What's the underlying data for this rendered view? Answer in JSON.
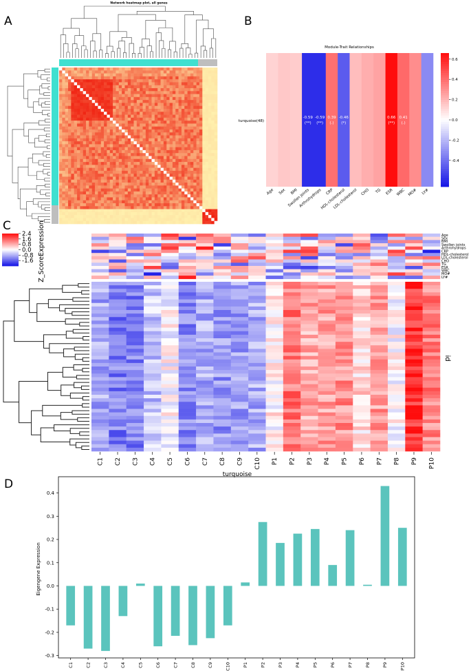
{
  "panels": {
    "a": {
      "letter": "A",
      "title": "Network heatmap plot, all genes"
    },
    "b": {
      "letter": "B"
    },
    "c": {
      "letter": "C"
    },
    "d": {
      "letter": "D"
    }
  },
  "colors": {
    "turquoise": "#40E0D0",
    "grey": "#BEBEBE",
    "bar": "#5BC4BD",
    "heat_high": "#E8150C",
    "heat_low": "#FFF8CC",
    "neg": "#1414E6",
    "pos": "#FF0D0D"
  },
  "chart_data": [
    {
      "id": "network_heatmap",
      "type": "heatmap",
      "title": "Network heatmap plot, all genes",
      "modules": [
        "turquoise",
        "grey"
      ],
      "module_sizes": [
        48,
        5
      ]
    },
    {
      "id": "module_trait",
      "type": "heatmap",
      "title": "Module-Trait Relationships",
      "row_label": "turquoise(48)",
      "traits": [
        "Age",
        "Sex",
        "BMI",
        "Swollen joints",
        "Arthrohydrops",
        "CRP",
        "HDL-cholesterol",
        "LDL-cholesterol",
        "CHO",
        "TG",
        "ESR",
        "WBC",
        "MO#",
        "LY#"
      ],
      "values": [
        0.12,
        0.15,
        0.14,
        -0.59,
        -0.59,
        0.39,
        -0.46,
        0.18,
        0.22,
        0.25,
        0.66,
        0.41,
        0.31,
        -0.33
      ],
      "cell_labels": [
        "",
        "",
        "",
        "-0.59",
        "-0.59",
        "0.39",
        "-0.46",
        "",
        "",
        "",
        "0.66",
        "0.41",
        "",
        ""
      ],
      "cell_stars": [
        "",
        "",
        "",
        "(**)",
        "(**)",
        "(.)",
        "(*)",
        "",
        "",
        "",
        "(**)",
        "(.)",
        "",
        ""
      ],
      "colorbar_ticks": [
        "0.6",
        "0.4",
        "0.2",
        "0.0",
        "-0.2",
        "-0.4"
      ],
      "colorbar_tick_values": [
        0.6,
        0.4,
        0.2,
        0.0,
        -0.2,
        -0.4
      ],
      "colorbar_range": [
        -0.66,
        0.66
      ]
    },
    {
      "id": "zscore_heatmap",
      "type": "heatmap",
      "columns": [
        "C1",
        "C2",
        "C3",
        "C4",
        "C5",
        "C6",
        "C7",
        "C8",
        "C9",
        "C10",
        "P1",
        "P2",
        "P3",
        "P4",
        "P5",
        "P6",
        "P7",
        "P8",
        "P9",
        "P10"
      ],
      "trait_rows": [
        "Age",
        "Sex",
        "BMI",
        "Swollen joints",
        "Arthrohydrops",
        "CRP",
        "HDL-cholesterol",
        "LDL-cholesterol",
        "CHO",
        "TG",
        "ESR",
        "WBC",
        "MO#",
        "LY#"
      ],
      "gene_rows": 48,
      "xlabel": "turquoise",
      "ylabel": "id",
      "legend_title": "Z_ScoreExpression",
      "legend_ticks": [
        "2.4",
        "1.6",
        "0.8",
        "0.0",
        "-0.8",
        "-1.6"
      ],
      "legend_tick_values": [
        2.4,
        1.6,
        0.8,
        0.0,
        -0.8,
        -1.6
      ],
      "legend_range": [
        -2.4,
        2.4
      ]
    },
    {
      "id": "eigengene_bar",
      "type": "bar",
      "categories": [
        "C1",
        "C2",
        "C3",
        "C4",
        "C5",
        "C6",
        "C7",
        "C8",
        "C9",
        "C10",
        "P1",
        "P2",
        "P3",
        "P4",
        "P5",
        "P6",
        "P7",
        "P8",
        "P9",
        "P10"
      ],
      "values": [
        -0.17,
        -0.27,
        -0.28,
        -0.13,
        0.01,
        -0.26,
        -0.215,
        -0.255,
        -0.225,
        -0.17,
        0.015,
        0.275,
        0.185,
        0.225,
        0.245,
        0.09,
        0.24,
        0.005,
        0.43,
        0.25
      ],
      "ylabel": "Eigengene Expression",
      "xlabel": "",
      "ylim": [
        -0.31,
        0.47
      ],
      "yticks": [
        0.4,
        0.3,
        0.2,
        0.1,
        0.0,
        -0.1,
        -0.2,
        -0.3
      ],
      "ytick_labels": [
        "0.4",
        "0.3",
        "0.2",
        "0.1",
        "0.0",
        "-0.1",
        "-0.2",
        "-0.3"
      ]
    }
  ]
}
